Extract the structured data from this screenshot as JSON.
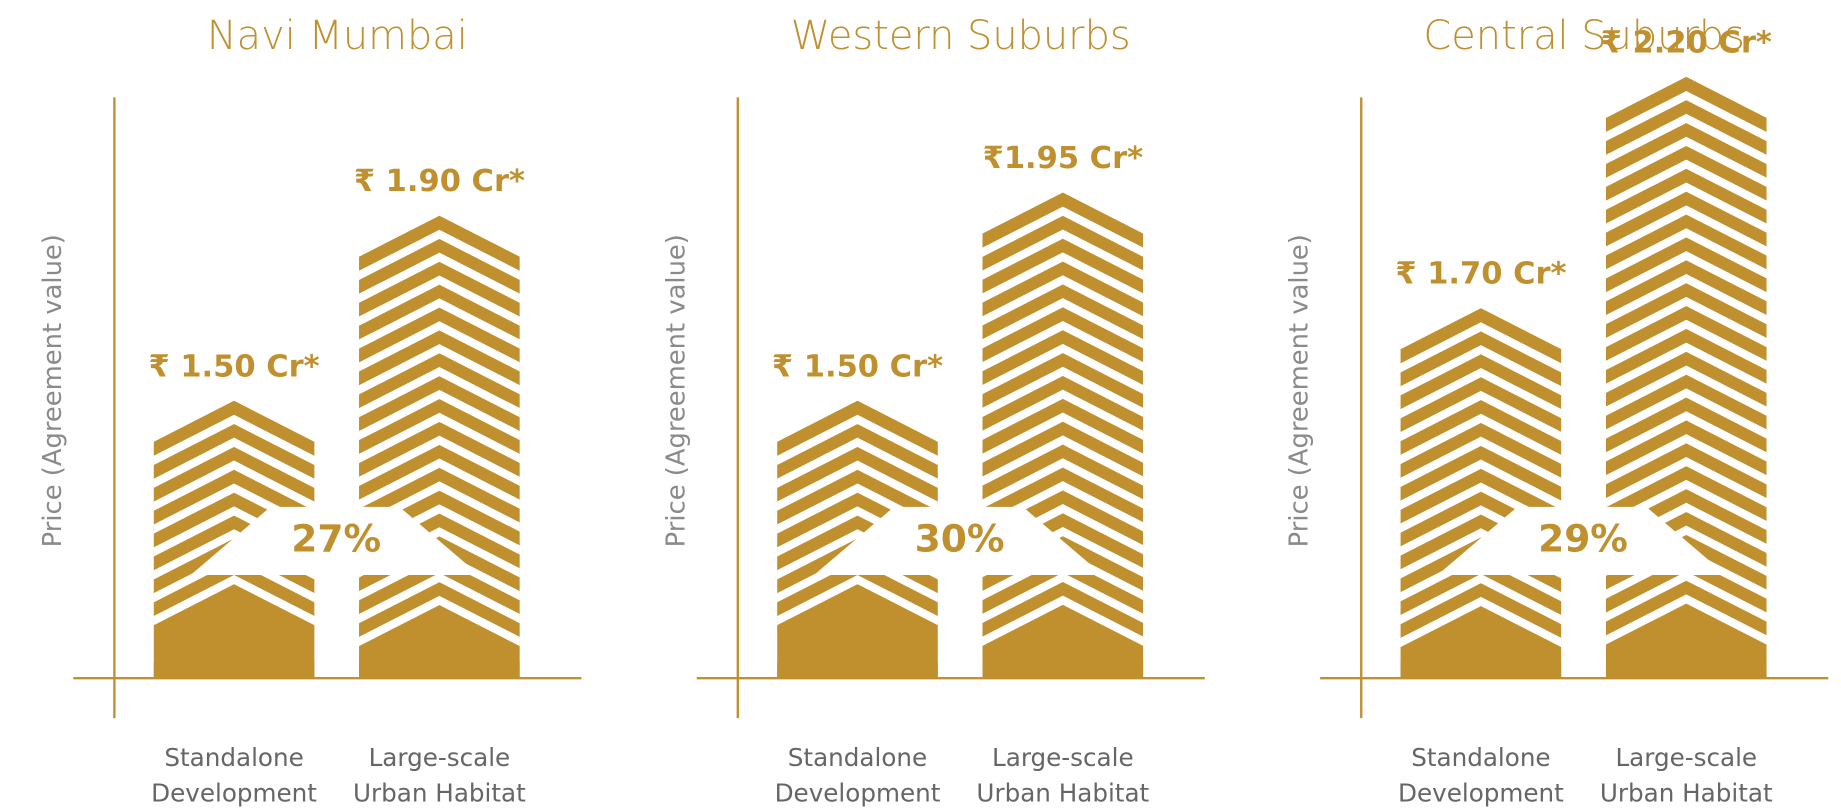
{
  "chart_data": [
    {
      "type": "bar",
      "title": "Navi Mumbai",
      "y_label": "Price (Agreement value)",
      "categories": [
        [
          "Standalone",
          "Development"
        ],
        [
          "Large-scale",
          "Urban Habitat"
        ]
      ],
      "values": [
        1.5,
        1.9
      ],
      "value_labels": [
        "₹ 1.50 Cr*",
        "₹ 1.90 Cr*"
      ],
      "annotation": "27%",
      "color": "#c0902f",
      "ylim": [
        0.9,
        2.3
      ]
    },
    {
      "type": "bar",
      "title": "Western Suburbs",
      "y_label": "Price (Agreement value)",
      "categories": [
        [
          "Standalone",
          "Development"
        ],
        [
          "Large-scale",
          "Urban Habitat"
        ]
      ],
      "values": [
        1.5,
        1.95
      ],
      "value_labels": [
        "₹ 1.50 Cr*",
        "₹1.95 Cr*"
      ],
      "annotation": "30%",
      "color": "#c0902f",
      "ylim": [
        0.9,
        2.3
      ]
    },
    {
      "type": "bar",
      "title": "Central Suburbs",
      "y_label": "Price (Agreement value)",
      "categories": [
        [
          "Standalone",
          "Development"
        ],
        [
          "Large-scale",
          "Urban Habitat"
        ]
      ],
      "values": [
        1.7,
        2.2
      ],
      "value_labels": [
        "₹ 1.70 Cr*",
        "₹ 2.20 Cr*"
      ],
      "annotation": "29%",
      "color": "#c0902f",
      "ylim": [
        0.9,
        2.3
      ]
    }
  ]
}
